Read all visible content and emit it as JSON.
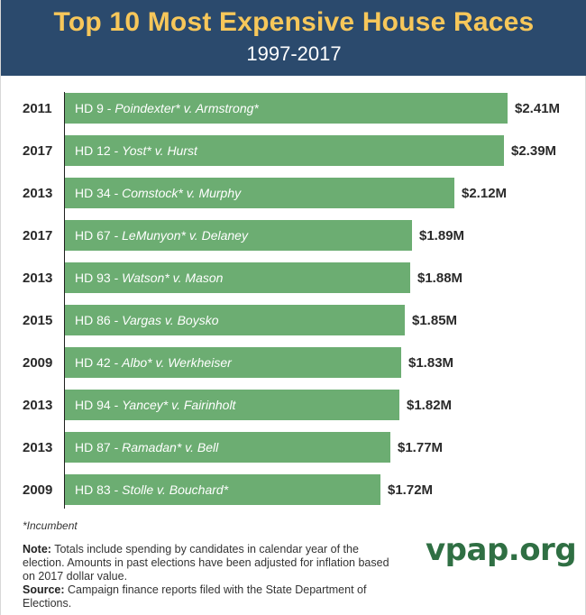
{
  "header": {
    "title": "Top 10 Most Expensive House Races",
    "subtitle": "1997-2017"
  },
  "chart_data": {
    "type": "bar",
    "orientation": "horizontal",
    "title": "Top 10 Most Expensive House Races",
    "subtitle": "1997-2017",
    "xlabel": "",
    "ylabel": "",
    "unit": "Millions of dollars (2017 dollars)",
    "xlim": [
      0,
      2.41
    ],
    "categories": [
      "HD 9 - Poindexter* v. Armstrong*",
      "HD 12 - Yost* v. Hurst",
      "HD 34 - Comstock* v. Murphy",
      "HD 67 - LeMunyon* v. Delaney",
      "HD 93 - Watson* v. Mason",
      "HD 86 - Vargas v. Boysko",
      "HD 42 - Albo* v. Werkheiser",
      "HD 94 - Yancey* v. Fairinholt",
      "HD 87 - Ramadan* v. Bell",
      "HD 83 - Stolle v. Bouchard*"
    ],
    "rows": [
      {
        "year": "2011",
        "district": "HD 9 - ",
        "race": "Poindexter* v. Armstrong*",
        "value": 2.41,
        "value_label": "$2.41M"
      },
      {
        "year": "2017",
        "district": "HD 12 - ",
        "race": "Yost* v. Hurst",
        "value": 2.39,
        "value_label": "$2.39M"
      },
      {
        "year": "2013",
        "district": "HD 34 - ",
        "race": "Comstock* v. Murphy",
        "value": 2.12,
        "value_label": "$2.12M"
      },
      {
        "year": "2017",
        "district": "HD 67 - ",
        "race": "LeMunyon* v. Delaney",
        "value": 1.89,
        "value_label": "$1.89M"
      },
      {
        "year": "2013",
        "district": "HD 93 - ",
        "race": "Watson* v. Mason",
        "value": 1.88,
        "value_label": "$1.88M"
      },
      {
        "year": "2015",
        "district": "HD 86 - ",
        "race": "Vargas v. Boysko",
        "value": 1.85,
        "value_label": "$1.85M"
      },
      {
        "year": "2009",
        "district": "HD 42 - ",
        "race": "Albo* v. Werkheiser",
        "value": 1.83,
        "value_label": "$1.83M"
      },
      {
        "year": "2013",
        "district": "HD 94 - ",
        "race": "Yancey* v. Fairinholt",
        "value": 1.82,
        "value_label": "$1.82M"
      },
      {
        "year": "2013",
        "district": "HD 87 - ",
        "race": "Ramadan* v. Bell",
        "value": 1.77,
        "value_label": "$1.77M"
      },
      {
        "year": "2009",
        "district": "HD 83 - ",
        "race": "Stolle v. Bouchard*",
        "value": 1.72,
        "value_label": "$1.72M"
      }
    ],
    "colors": {
      "bar": "#6cad72",
      "header": "#2b4a6d",
      "title": "#f7c75a"
    }
  },
  "footnote": "*Incumbent",
  "note": {
    "note_label": "Note:",
    "note_text": " Totals include spending by candidates in calendar year of the election. Amounts in past elections have been adjusted for inflation based on 2017 dollar value.",
    "source_label": "Source:",
    "source_text": " Campaign finance reports filed with the State Department of Elections."
  },
  "logo": "vpap.org"
}
